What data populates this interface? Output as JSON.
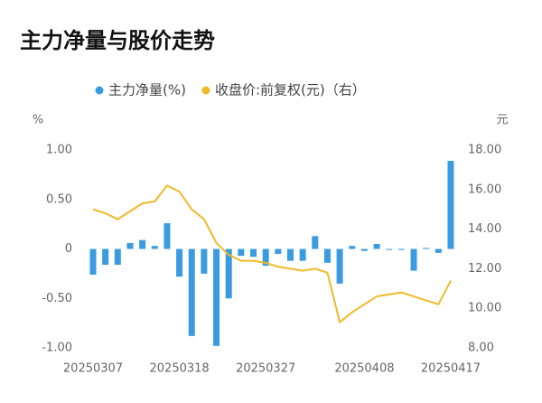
{
  "chart_data": {
    "type": "bar_line",
    "title": "主力净量与股价走势",
    "y_unit": "%",
    "y2_unit": "元",
    "categories": [
      "20250307",
      null,
      null,
      null,
      null,
      null,
      null,
      "20250318",
      null,
      null,
      null,
      null,
      null,
      null,
      "20250327",
      null,
      null,
      null,
      null,
      null,
      null,
      null,
      "20250408",
      null,
      null,
      null,
      null,
      null,
      null,
      "20250417"
    ],
    "series": [
      {
        "name": "主力净量(%)",
        "color": "#3a9be0",
        "type": "bar",
        "values": [
          -0.26,
          -0.16,
          -0.16,
          0.06,
          0.09,
          0.03,
          0.26,
          -0.28,
          -0.88,
          -0.25,
          -0.98,
          -0.5,
          -0.07,
          -0.08,
          -0.17,
          -0.05,
          -0.12,
          -0.12,
          0.13,
          -0.14,
          -0.35,
          0.03,
          -0.02,
          0.05,
          -0.01,
          -0.01,
          -0.22,
          0.01,
          -0.04,
          0.89
        ]
      },
      {
        "name": "收盘价:前复权(元)（右）",
        "color": "#f0b92a",
        "type": "line",
        "axis": "y2",
        "values": [
          15.0,
          14.8,
          14.5,
          14.9,
          15.3,
          15.4,
          16.2,
          15.9,
          15.0,
          14.5,
          13.3,
          12.7,
          12.4,
          12.4,
          12.3,
          12.1,
          12.0,
          11.9,
          12.0,
          11.8,
          9.3,
          9.8,
          10.2,
          10.6,
          10.7,
          10.8,
          10.6,
          10.4,
          10.2,
          11.4
        ]
      }
    ],
    "ylim": [
      -1,
      1
    ],
    "yticks": [
      {
        "value": 1,
        "label": "1.00"
      },
      {
        "value": 0.5,
        "label": "0.50"
      },
      0,
      {
        "value": -0.5,
        "label": "-0.50"
      },
      {
        "value": -1,
        "label": "-1.00"
      }
    ],
    "y2lim": [
      8,
      18
    ],
    "y2ticks": [
      {
        "value": 18,
        "label": "18.00"
      },
      {
        "value": 16,
        "label": "16.00"
      },
      {
        "value": 14,
        "label": "14.00"
      },
      {
        "value": 12,
        "label": "12.00"
      },
      {
        "value": 10,
        "label": "10.00"
      },
      {
        "value": 8,
        "label": "8.00"
      }
    ]
  }
}
